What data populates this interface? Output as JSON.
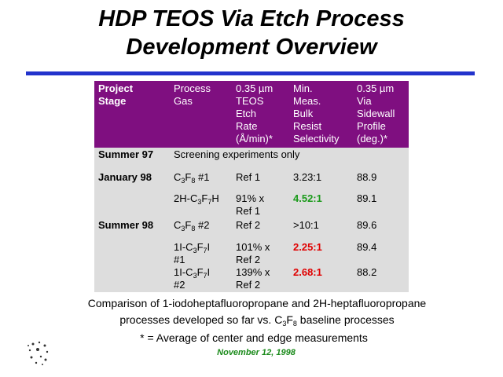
{
  "title": [
    "HDP TEOS Via Etch Process",
    "Development Overview"
  ],
  "table": {
    "header": [
      [
        "Project",
        "Stage"
      ],
      [
        "Process",
        "Gas"
      ],
      [
        "0.35 µm",
        "TEOS",
        "Etch",
        "Rate",
        "(Å/min)*"
      ],
      [
        "Min.",
        "Meas.",
        "Bulk",
        "Resist",
        "Selectivity"
      ],
      [
        "0.35 µm",
        "Via",
        "Sidewall",
        "Profile",
        "(deg.)*"
      ]
    ],
    "rows": [
      {
        "stage": "Summer 97",
        "note": "Screening experiments only"
      },
      {
        "stage": "January 98",
        "gas": [
          "C3F8 #1"
        ],
        "rate": [
          "Ref 1"
        ],
        "selectivity": "3.23:1",
        "selectivity_color": "#000000",
        "profile": "88.9"
      },
      {
        "stage": null,
        "gas": [
          "2H-C3F7H"
        ],
        "rate": [
          "91% x",
          "Ref 1"
        ],
        "selectivity": "4.52:1",
        "selectivity_color": "#1a9a1a",
        "profile": "89.1"
      },
      {
        "stage": "Summer 98",
        "gas": [
          "C3F8 #2"
        ],
        "rate": [
          "Ref 2"
        ],
        "selectivity": ">10:1",
        "selectivity_color": "#000000",
        "profile": "89.6"
      },
      {
        "stage": null,
        "gas": [
          "1I-C3F7I",
          "#1"
        ],
        "rate": [
          "101% x",
          "Ref 2"
        ],
        "selectivity": "2.25:1",
        "selectivity_color": "#e00000",
        "profile": "89.4"
      },
      {
        "stage": null,
        "gas": [
          "1I-C3F7I",
          "#2"
        ],
        "rate": [
          "139% x",
          "Ref 2"
        ],
        "selectivity": "2.68:1",
        "selectivity_color": "#e00000",
        "profile": "88.2"
      }
    ]
  },
  "caption": [
    "Comparison of 1-iodoheptafluoropropane and 2H-heptafluoropropane",
    "processes developed so far vs. C3F8 baseline processes"
  ],
  "footnote": "* = Average of center and edge measurements",
  "date": "November 12, 1998"
}
